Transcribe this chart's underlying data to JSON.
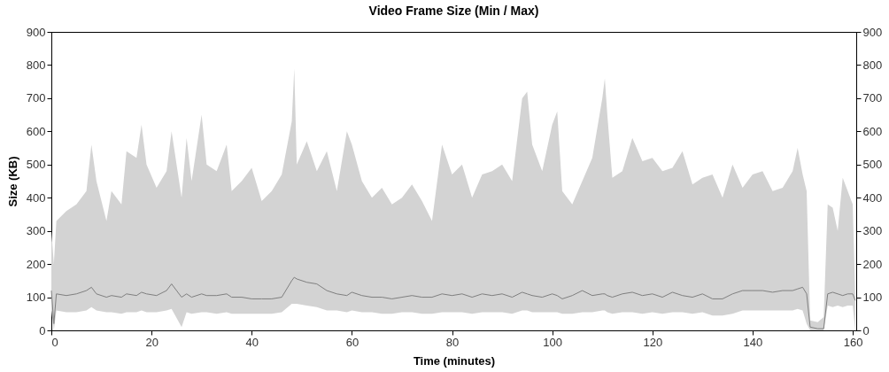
{
  "chart_data": {
    "type": "line",
    "title": "Video Frame Size (Min / Max)",
    "xlabel": "Time (minutes)",
    "ylabel": "Size (KB)",
    "xlim": [
      0,
      160.7
    ],
    "xticks": [
      0,
      20,
      40,
      60,
      80,
      100,
      120,
      140,
      160
    ],
    "ylim": [
      0,
      900
    ],
    "yticks": [
      0,
      100,
      200,
      300,
      400,
      500,
      600,
      700,
      800,
      900
    ],
    "y2lim": [
      0,
      900
    ],
    "y2ticks": [
      0,
      100,
      200,
      300,
      400,
      500,
      600,
      700,
      800,
      900
    ],
    "grid": false,
    "marker": "none",
    "line_style": "solid",
    "series": [
      {
        "color": "#7f7f7f",
        "x": [
          0,
          0.5,
          1,
          3,
          5,
          7,
          8,
          9,
          11,
          12,
          14,
          15,
          17,
          18,
          19,
          21,
          23,
          24,
          26,
          27,
          28,
          30,
          31,
          33,
          35,
          36,
          38,
          40,
          42,
          44,
          46,
          48,
          48.5,
          49,
          51,
          53,
          55,
          57,
          59,
          60,
          62,
          64,
          66,
          68,
          70,
          72,
          74,
          76,
          78,
          80,
          82,
          84,
          86,
          88,
          90,
          92,
          94,
          95,
          96,
          98,
          100,
          101,
          102,
          104,
          106,
          108,
          110,
          110.5,
          111,
          112,
          114,
          116,
          118,
          120,
          122,
          124,
          126,
          128,
          130,
          132,
          134,
          136,
          138,
          140,
          142,
          144,
          146,
          148,
          149,
          150,
          150.8,
          151.5,
          153,
          154.2,
          155,
          156,
          157,
          158,
          159,
          160,
          160.5
        ],
        "values": [
          120,
          20,
          110,
          105,
          110,
          120,
          130,
          110,
          100,
          105,
          100,
          110,
          105,
          115,
          110,
          105,
          120,
          140,
          100,
          110,
          100,
          110,
          105,
          105,
          110,
          100,
          100,
          95,
          95,
          95,
          100,
          150,
          160,
          155,
          145,
          140,
          120,
          110,
          105,
          115,
          105,
          100,
          100,
          95,
          100,
          105,
          100,
          100,
          110,
          105,
          110,
          100,
          110,
          105,
          110,
          100,
          115,
          110,
          105,
          100,
          110,
          105,
          95,
          105,
          120,
          105,
          110,
          110,
          105,
          100,
          110,
          115,
          105,
          110,
          100,
          115,
          105,
          100,
          110,
          95,
          95,
          110,
          120,
          120,
          120,
          115,
          120,
          120,
          125,
          130,
          110,
          10,
          5,
          5,
          110,
          115,
          110,
          105,
          110,
          110,
          90
        ],
        "lower": [
          60,
          0,
          60,
          55,
          55,
          60,
          70,
          60,
          55,
          55,
          50,
          55,
          55,
          60,
          55,
          55,
          60,
          65,
          10,
          55,
          50,
          55,
          55,
          50,
          55,
          50,
          50,
          50,
          50,
          50,
          55,
          80,
          80,
          80,
          75,
          70,
          60,
          60,
          55,
          60,
          55,
          55,
          50,
          50,
          55,
          55,
          50,
          50,
          55,
          55,
          55,
          50,
          55,
          55,
          55,
          50,
          60,
          60,
          55,
          55,
          55,
          55,
          50,
          50,
          55,
          55,
          60,
          60,
          55,
          50,
          55,
          55,
          50,
          55,
          50,
          55,
          55,
          50,
          55,
          45,
          45,
          50,
          60,
          60,
          60,
          60,
          60,
          60,
          65,
          60,
          20,
          0,
          0,
          0,
          75,
          70,
          75,
          70,
          75,
          75,
          0
        ],
        "upper": [
          300,
          200,
          330,
          360,
          380,
          420,
          560,
          450,
          330,
          420,
          380,
          540,
          520,
          620,
          500,
          430,
          480,
          600,
          400,
          580,
          450,
          650,
          500,
          480,
          560,
          420,
          450,
          490,
          390,
          420,
          470,
          630,
          790,
          500,
          570,
          480,
          540,
          420,
          600,
          560,
          450,
          400,
          430,
          380,
          400,
          440,
          390,
          330,
          560,
          470,
          500,
          400,
          470,
          480,
          500,
          450,
          700,
          720,
          560,
          480,
          620,
          660,
          420,
          380,
          450,
          520,
          700,
          760,
          650,
          460,
          480,
          580,
          510,
          520,
          480,
          490,
          540,
          440,
          460,
          470,
          400,
          500,
          430,
          470,
          480,
          420,
          430,
          480,
          550,
          470,
          420,
          30,
          25,
          40,
          380,
          370,
          300,
          460,
          420,
          380,
          100
        ]
      }
    ]
  }
}
